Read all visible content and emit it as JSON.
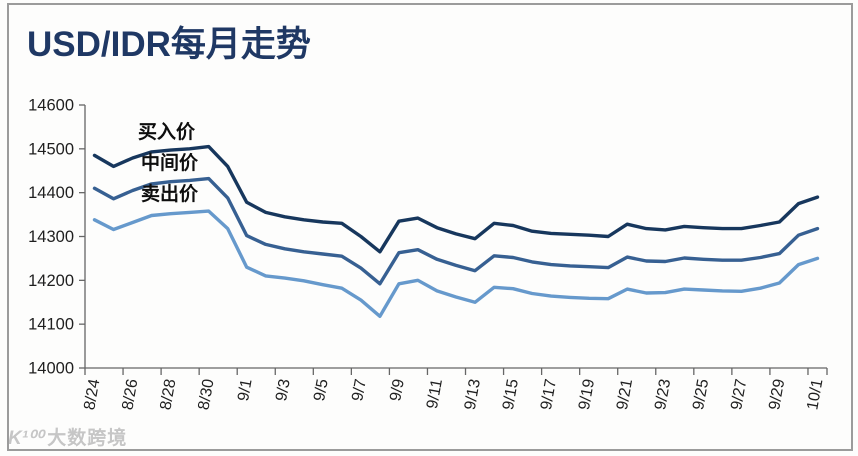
{
  "watermark": {
    "logo": "K¹⁰⁰",
    "text": "大数跨境"
  },
  "colors": {
    "title": "#1F3864",
    "axis": "#666666",
    "tick_text": "#1f1f1f",
    "frame": "#9B9B9B"
  },
  "chart_data": {
    "type": "line",
    "title": "USD/IDR每月走势",
    "xlabel": "",
    "ylabel": "",
    "grid": false,
    "legend": "inline-labels-top-left",
    "ylim": [
      14000,
      14600
    ],
    "y_ticks": [
      14000,
      14100,
      14200,
      14300,
      14400,
      14500,
      14600
    ],
    "x": [
      "8/24",
      "8/25",
      "8/26",
      "8/27",
      "8/28",
      "8/29",
      "8/30",
      "8/31",
      "9/1",
      "9/2",
      "9/3",
      "9/4",
      "9/5",
      "9/6",
      "9/7",
      "9/8",
      "9/9",
      "9/10",
      "9/11",
      "9/12",
      "9/13",
      "9/14",
      "9/15",
      "9/16",
      "9/17",
      "9/18",
      "9/19",
      "9/20",
      "9/21",
      "9/22",
      "9/23",
      "9/24",
      "9/25",
      "9/26",
      "9/27",
      "9/28",
      "9/29",
      "9/30",
      "10/1"
    ],
    "x_tick_labels": [
      "8/24",
      "8/26",
      "8/28",
      "8/30",
      "9/1",
      "9/3",
      "9/5",
      "9/7",
      "9/9",
      "9/11",
      "9/13",
      "9/15",
      "9/17",
      "9/19",
      "9/21",
      "9/23",
      "9/25",
      "9/27",
      "9/29",
      "10/1"
    ],
    "series": [
      {
        "name": "买入价",
        "color": "#17375D",
        "values": [
          14485,
          14460,
          14479,
          14493,
          14497,
          14500,
          14505,
          14460,
          14378,
          14355,
          14345,
          14338,
          14333,
          14330,
          14300,
          14265,
          14335,
          14342,
          14320,
          14306,
          14295,
          14330,
          14325,
          14312,
          14307,
          14305,
          14303,
          14300,
          14328,
          14318,
          14315,
          14323,
          14320,
          14318,
          14318,
          14325,
          14333,
          14375,
          14390
        ]
      },
      {
        "name": "中间价",
        "color": "#376092",
        "values": [
          14410,
          14386,
          14405,
          14420,
          14425,
          14428,
          14432,
          14388,
          14302,
          14282,
          14272,
          14265,
          14260,
          14255,
          14228,
          14192,
          14263,
          14270,
          14248,
          14234,
          14222,
          14256,
          14252,
          14242,
          14236,
          14233,
          14231,
          14229,
          14253,
          14244,
          14243,
          14251,
          14248,
          14246,
          14246,
          14252,
          14261,
          14303,
          14318
        ]
      },
      {
        "name": "卖出价",
        "color": "#6699CC",
        "values": [
          14338,
          14316,
          14332,
          14348,
          14352,
          14355,
          14358,
          14318,
          14230,
          14210,
          14205,
          14199,
          14190,
          14182,
          14155,
          14118,
          14192,
          14200,
          14176,
          14162,
          14150,
          14184,
          14181,
          14170,
          14164,
          14161,
          14159,
          14158,
          14180,
          14171,
          14172,
          14180,
          14178,
          14176,
          14175,
          14182,
          14194,
          14236,
          14250
        ]
      }
    ]
  }
}
